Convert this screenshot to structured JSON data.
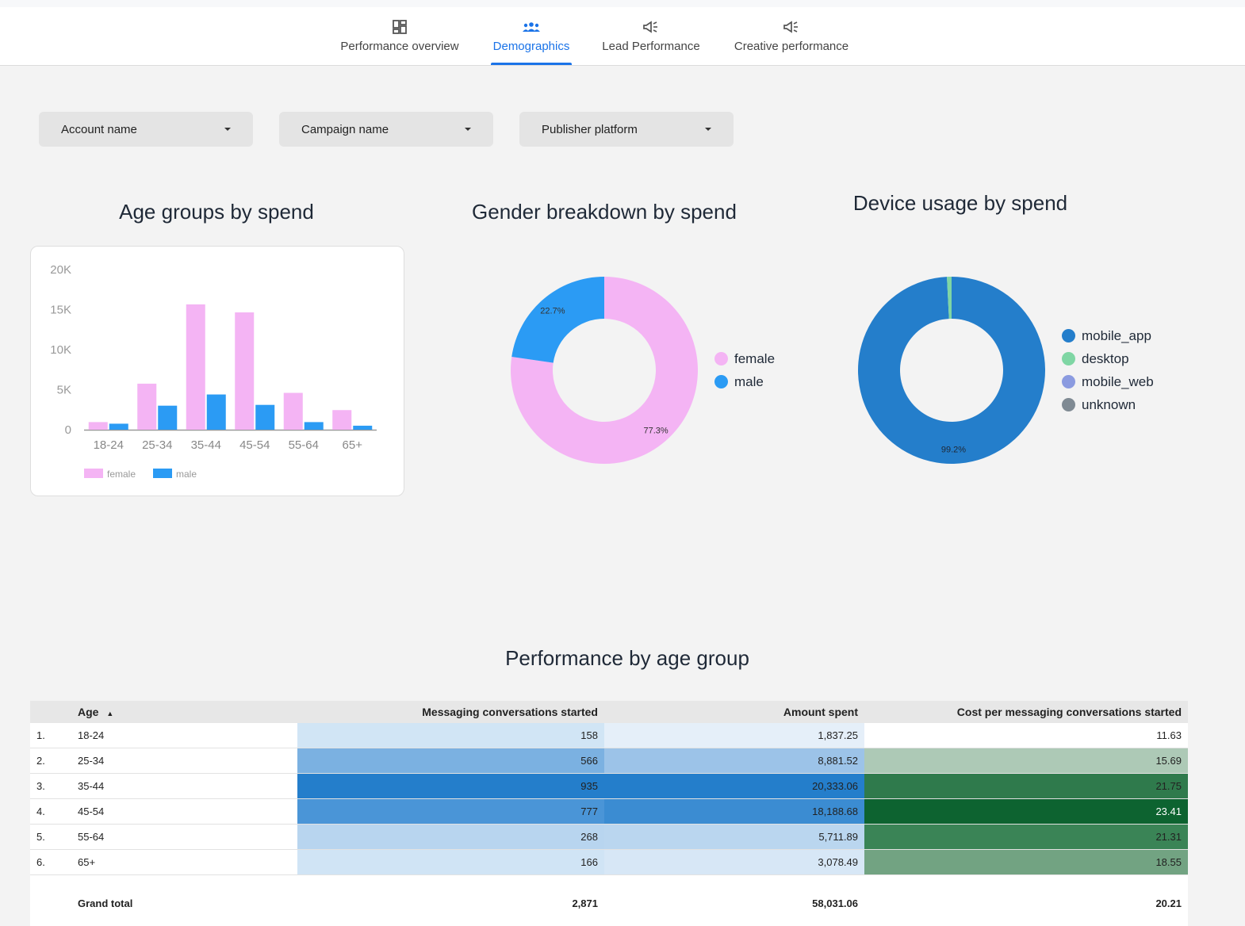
{
  "nav": {
    "tabs": [
      {
        "label": "Performance overview",
        "icon": "dashboard-icon"
      },
      {
        "label": "Demographics",
        "icon": "group-icon",
        "active": true
      },
      {
        "label": "Lead Performance",
        "icon": "megaphone-icon"
      },
      {
        "label": "Creative performance",
        "icon": "megaphone-icon"
      }
    ]
  },
  "filters": [
    {
      "label": "Account name"
    },
    {
      "label": "Campaign name"
    },
    {
      "label": "Publisher platform"
    }
  ],
  "titles": {
    "age": "Age groups by spend",
    "gender": "Gender breakdown by spend",
    "device": "Device usage by spend",
    "table": "Performance by age group"
  },
  "chart_data": [
    {
      "type": "bar",
      "title": "Age groups by spend",
      "categories": [
        "18-24",
        "25-34",
        "35-44",
        "45-54",
        "55-64",
        "65+"
      ],
      "series": [
        {
          "name": "female",
          "values": [
            950,
            5750,
            15650,
            14650,
            4600,
            2450
          ],
          "color": "#f4b4f4"
        },
        {
          "name": "male",
          "values": [
            750,
            3000,
            4400,
            3100,
            950,
            500
          ],
          "color": "#2b9bf4"
        }
      ],
      "ylim": [
        0,
        20000
      ],
      "yticks": [
        "0",
        "5K",
        "10K",
        "15K",
        "20K"
      ],
      "legend": "bottom-left"
    },
    {
      "type": "pie",
      "title": "Gender breakdown by spend",
      "donut": true,
      "slices": [
        {
          "name": "female",
          "value": 77.3,
          "label": "77.3%",
          "color": "#f4b4f4"
        },
        {
          "name": "male",
          "value": 22.7,
          "label": "22.7%",
          "color": "#2b9bf4"
        }
      ],
      "legend": "right"
    },
    {
      "type": "pie",
      "title": "Device usage by spend",
      "donut": true,
      "slices": [
        {
          "name": "mobile_app",
          "value": 99.2,
          "label": "99.2%",
          "color": "#247ecb"
        },
        {
          "name": "desktop",
          "value": 0.8,
          "label": "",
          "color": "#7fd6a4"
        },
        {
          "name": "mobile_web",
          "value": 0,
          "label": "",
          "color": "#8b9be0"
        },
        {
          "name": "unknown",
          "value": 0,
          "label": "",
          "color": "#7f8a93"
        }
      ],
      "legend": "right"
    },
    {
      "type": "table",
      "title": "Performance by age group",
      "columns": [
        "Age",
        "Messaging conversations started",
        "Amount spent",
        "Cost per messaging conversations started"
      ],
      "rows": [
        {
          "idx": "1.",
          "age": "18-24",
          "msg": "158",
          "spent": "1,837.25",
          "cost": "11.63",
          "msg_bg": "#d1e5f5",
          "spent_bg": "#e5eff9",
          "cost_bg": "#ffffff",
          "cost_fg": "#222222"
        },
        {
          "idx": "2.",
          "age": "25-34",
          "msg": "566",
          "spent": "8,881.52",
          "cost": "15.69",
          "msg_bg": "#7bb1e1",
          "spent_bg": "#9cc3e8",
          "cost_bg": "#adc9b6",
          "cost_fg": "#222222"
        },
        {
          "idx": "3.",
          "age": "35-44",
          "msg": "935",
          "spent": "20,333.06",
          "cost": "21.75",
          "msg_bg": "#247ecb",
          "spent_bg": "#247ecb",
          "cost_bg": "#2f7a4c",
          "cost_fg": "#222222"
        },
        {
          "idx": "4.",
          "age": "45-54",
          "msg": "777",
          "spent": "18,188.68",
          "cost": "23.41",
          "msg_bg": "#4a95d7",
          "spent_bg": "#3b8cd2",
          "cost_bg": "#0d6330",
          "cost_fg": "#ffffff"
        },
        {
          "idx": "5.",
          "age": "55-64",
          "msg": "268",
          "spent": "5,711.89",
          "cost": "21.31",
          "msg_bg": "#b8d5ef",
          "spent_bg": "#bad6ef",
          "cost_bg": "#3a8456",
          "cost_fg": "#222222"
        },
        {
          "idx": "6.",
          "age": "65+",
          "msg": "166",
          "spent": "3,078.49",
          "cost": "18.55",
          "msg_bg": "#d0e4f5",
          "spent_bg": "#d7e7f6",
          "cost_bg": "#72a382",
          "cost_fg": "#222222"
        }
      ],
      "total": {
        "label": "Grand total",
        "msg": "2,871",
        "spent": "58,031.06",
        "cost": "20.21"
      },
      "sort": "Age ascending"
    }
  ]
}
